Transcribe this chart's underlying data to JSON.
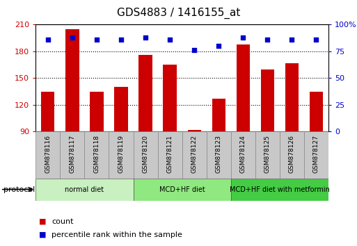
{
  "title": "GDS4883 / 1416155_at",
  "samples": [
    "GSM878116",
    "GSM878117",
    "GSM878118",
    "GSM878119",
    "GSM878120",
    "GSM878121",
    "GSM878122",
    "GSM878123",
    "GSM878124",
    "GSM878125",
    "GSM878126",
    "GSM878127"
  ],
  "counts": [
    135,
    205,
    135,
    140,
    176,
    165,
    92,
    127,
    188,
    160,
    167,
    135
  ],
  "percentiles": [
    86,
    88,
    86,
    86,
    88,
    86,
    76,
    80,
    88,
    86,
    86,
    86
  ],
  "groups": [
    {
      "label": "normal diet",
      "start": 0,
      "end": 4,
      "color": "#c8f0c0"
    },
    {
      "label": "MCD+HF diet",
      "start": 4,
      "end": 8,
      "color": "#90e880"
    },
    {
      "label": "MCD+HF diet with metformin",
      "start": 8,
      "end": 12,
      "color": "#44cc44"
    }
  ],
  "bar_color": "#cc0000",
  "dot_color": "#0000cc",
  "ylim_left": [
    90,
    210
  ],
  "yticks_left": [
    90,
    120,
    150,
    180,
    210
  ],
  "ylim_right": [
    0,
    100
  ],
  "yticks_right": [
    0,
    25,
    50,
    75,
    100
  ],
  "left_color": "#cc0000",
  "right_color": "#0000cc",
  "background_color": "#ffffff",
  "tick_bg_color": "#c8c8c8",
  "legend_items": [
    {
      "label": "count",
      "color": "#cc0000"
    },
    {
      "label": "percentile rank within the sample",
      "color": "#0000cc"
    }
  ],
  "protocol_label": "protocol"
}
